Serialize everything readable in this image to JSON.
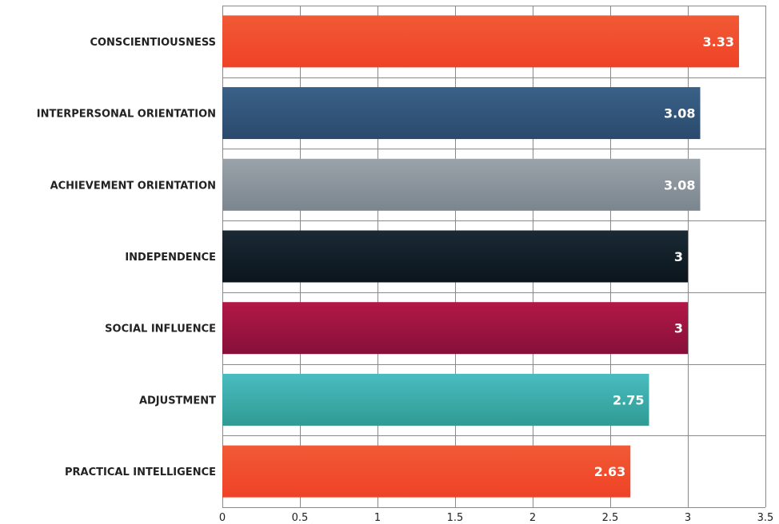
{
  "chart_data": {
    "type": "bar",
    "orientation": "horizontal",
    "title": "",
    "xlabel": "",
    "ylabel": "",
    "xlim": [
      0,
      3.5
    ],
    "x_ticks": [
      0,
      0.5,
      1,
      1.5,
      2,
      2.5,
      3,
      3.5
    ],
    "x_tick_labels": [
      "0",
      "0.5",
      "1",
      "1.5",
      "2",
      "2.5",
      "3",
      "3.5"
    ],
    "grid": true,
    "legend": "none",
    "categories": [
      "CONSCIENTIOUSNESS",
      "INTERPERSONAL ORIENTATION",
      "ACHIEVEMENT ORIENTATION",
      "INDEPENDENCE",
      "SOCIAL INFLUENCE",
      "ADJUSTMENT",
      "PRACTICAL INTELLIGENCE"
    ],
    "values": [
      3.33,
      3.08,
      3.08,
      3,
      3,
      2.75,
      2.63
    ],
    "value_labels": [
      "3.33",
      "3.08",
      "3.08",
      "3",
      "3",
      "2.75",
      "2.63"
    ],
    "colors": [
      [
        "#f15a35",
        "#ef4226"
      ],
      [
        "#3a6188",
        "#2a4a6d"
      ],
      [
        "#9aa3aa",
        "#7b858d"
      ],
      [
        "#1a2a35",
        "#0b151c"
      ],
      [
        "#b31846",
        "#86103a"
      ],
      [
        "#4abcc0",
        "#2f9b93"
      ],
      [
        "#f15a35",
        "#ef4226"
      ]
    ]
  }
}
